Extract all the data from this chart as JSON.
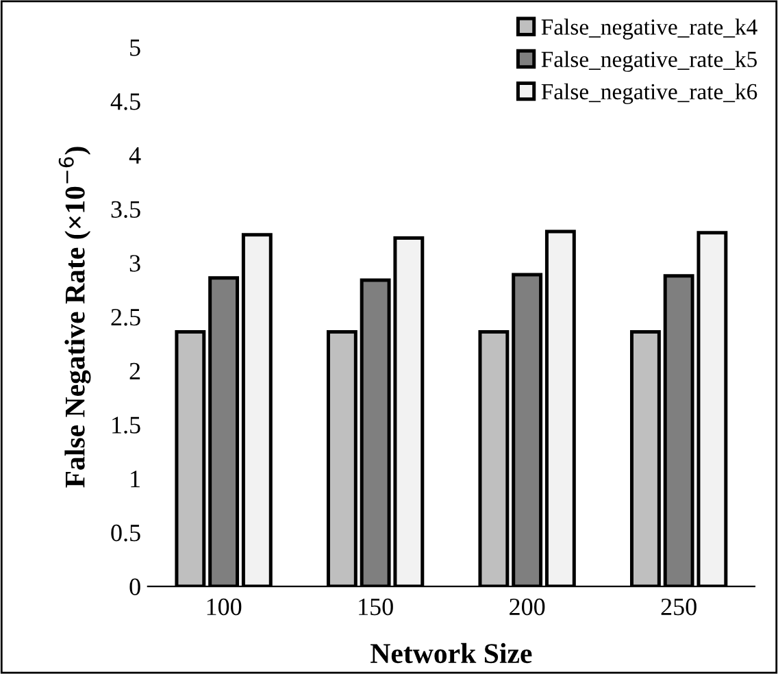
{
  "chart_data": {
    "type": "bar",
    "xlabel": "Network Size",
    "ylabel": "False Negative Rate (×10$^{−6}$)",
    "categories": [
      "100",
      "150",
      "200",
      "250"
    ],
    "series": [
      {
        "name": "False_negative_rate_k4",
        "color": "#bfbfbf",
        "values": [
          2.36,
          2.36,
          2.36,
          2.36
        ]
      },
      {
        "name": "False_negative_rate_k5",
        "color": "#7f7f7f",
        "values": [
          2.86,
          2.84,
          2.89,
          2.88
        ]
      },
      {
        "name": "False_negative_rate_k6",
        "color": "#f2f2f2",
        "values": [
          3.26,
          3.23,
          3.29,
          3.28
        ]
      }
    ],
    "ylim": [
      0,
      5
    ],
    "yticks": [
      0,
      0.5,
      1,
      1.5,
      2,
      2.5,
      3,
      3.5,
      4,
      4.5,
      5
    ],
    "grid": false,
    "legend": "top right"
  }
}
